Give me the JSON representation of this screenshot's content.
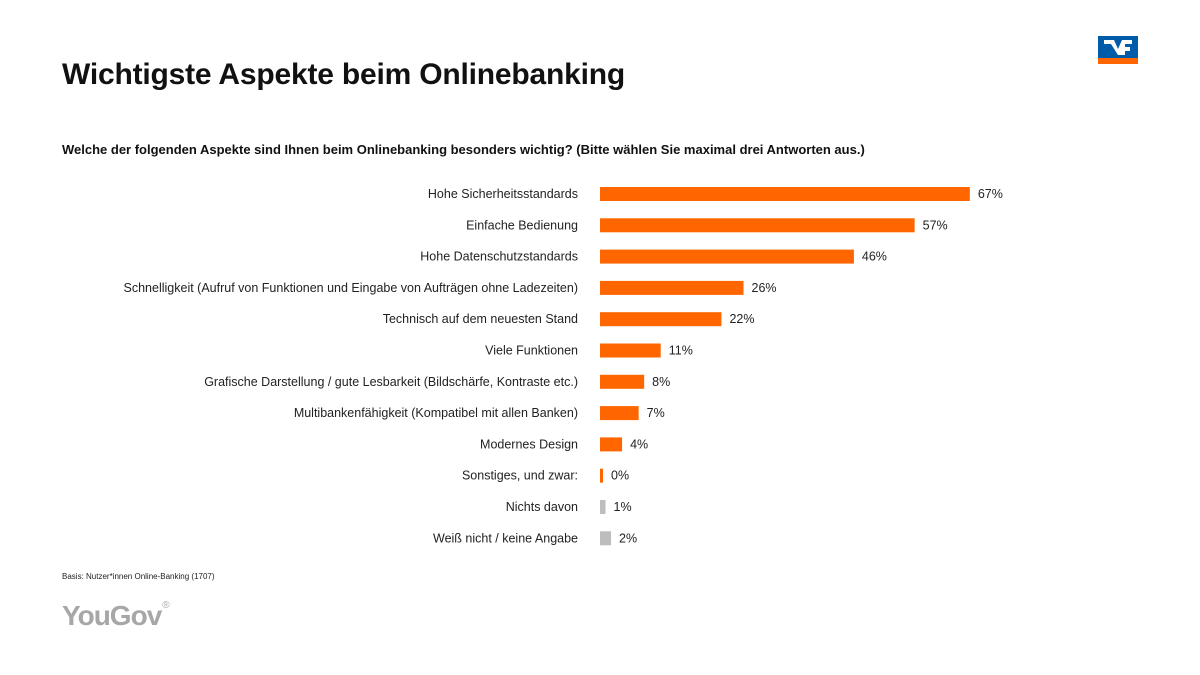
{
  "title": "Wichtigste Aspekte beim Onlinebanking",
  "question": "Welche der folgenden Aspekte sind Ihnen beim Onlinebanking besonders wichtig? (Bitte wählen Sie maximal drei Antworten aus.)",
  "basis": "Basis: Nutzer*innen Online-Banking (1707)",
  "brand": "YouGov",
  "brand_mark": "®",
  "colors": {
    "highlight": "#ff6600",
    "neutral": "#bdbdbd",
    "logo_blue": "#005ca9",
    "logo_orange": "#ff6600"
  },
  "icons": {
    "logo": "volksbank-logo-icon"
  },
  "chart_data": {
    "type": "bar",
    "orientation": "horizontal",
    "xlim": [
      0,
      70
    ],
    "categories": [
      "Hohe Sicherheitsstandards",
      "Einfache Bedienung",
      "Hohe Datenschutzstandards",
      "Schnelligkeit (Aufruf von Funktionen und Eingabe von Aufträgen ohne Ladezeiten)",
      "Technisch auf dem neuesten Stand",
      "Viele Funktionen",
      "Grafische Darstellung / gute Lesbarkeit (Bildschärfe, Kontraste etc.)",
      "Multibankenfähigkeit (Kompatibel mit allen Banken)",
      "Modernes Design",
      "Sonstiges, und zwar:",
      "Nichts davon",
      "Weiß nicht / keine Angabe"
    ],
    "values": [
      67,
      57,
      46,
      26,
      22,
      11,
      8,
      7,
      4,
      0,
      1,
      2
    ],
    "data_labels": [
      "67%",
      "57%",
      "46%",
      "26%",
      "22%",
      "11%",
      "8%",
      "7%",
      "4%",
      "0%",
      "1%",
      "2%"
    ],
    "bar_colors": [
      "#ff6600",
      "#ff6600",
      "#ff6600",
      "#ff6600",
      "#ff6600",
      "#ff6600",
      "#ff6600",
      "#ff6600",
      "#ff6600",
      "#ff6600",
      "#bdbdbd",
      "#bdbdbd"
    ],
    "grid": false,
    "legend": "none"
  }
}
